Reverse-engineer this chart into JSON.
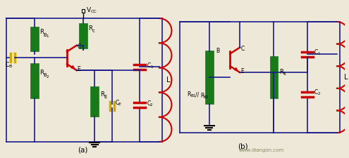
{
  "bg_color": "#ede8d8",
  "wire_color": "#1a1a8c",
  "res_color": "#1a7a1a",
  "cap_color": "#cc0000",
  "ind_color": "#cc0000",
  "tr_color": "#cc0000",
  "label_color": "#000000",
  "cb_color": "#ccaa00",
  "lw": 1.2,
  "title_a": "(a)",
  "title_b": "(b)",
  "watermark": "www.diangon.com"
}
